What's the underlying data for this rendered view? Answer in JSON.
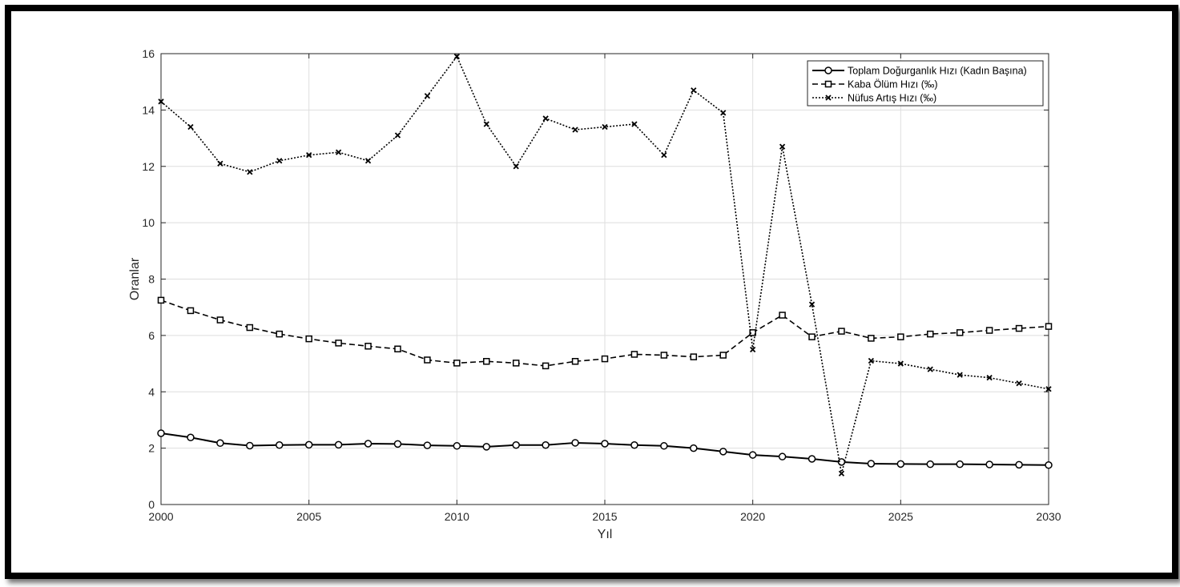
{
  "chart_data": {
    "type": "line",
    "title": "",
    "xlabel": "Yıl",
    "ylabel": "Oranlar",
    "xlim": [
      2000,
      2030
    ],
    "ylim": [
      0,
      16
    ],
    "xticks": [
      2000,
      2005,
      2010,
      2015,
      2020,
      2025,
      2030
    ],
    "yticks": [
      0,
      2,
      4,
      6,
      8,
      10,
      12,
      14,
      16
    ],
    "grid": true,
    "legend_position": "top-right",
    "x": [
      2000,
      2001,
      2002,
      2003,
      2004,
      2005,
      2006,
      2007,
      2008,
      2009,
      2010,
      2011,
      2012,
      2013,
      2014,
      2015,
      2016,
      2017,
      2018,
      2019,
      2020,
      2021,
      2022,
      2023,
      2024,
      2025,
      2026,
      2027,
      2028,
      2029,
      2030
    ],
    "series": [
      {
        "name": "Toplam Doğurganlık Hızı (Kadın Başına)",
        "style": "solid",
        "marker": "circle",
        "color": "#000000",
        "values": [
          2.53,
          2.38,
          2.18,
          2.09,
          2.11,
          2.12,
          2.12,
          2.16,
          2.15,
          2.1,
          2.08,
          2.05,
          2.11,
          2.11,
          2.19,
          2.16,
          2.11,
          2.08,
          2.0,
          1.88,
          1.76,
          1.7,
          1.62,
          1.51,
          1.45,
          1.44,
          1.43,
          1.43,
          1.42,
          1.41,
          1.4
        ]
      },
      {
        "name": "Kaba Ölüm Hızı (‰)",
        "style": "dashed",
        "marker": "square",
        "color": "#000000",
        "values": [
          7.25,
          6.88,
          6.55,
          6.28,
          6.05,
          5.88,
          5.73,
          5.62,
          5.52,
          5.13,
          5.02,
          5.08,
          5.02,
          4.92,
          5.08,
          5.17,
          5.33,
          5.3,
          5.24,
          5.3,
          6.1,
          6.72,
          5.95,
          6.15,
          5.9,
          5.95,
          6.05,
          6.1,
          6.18,
          6.25,
          6.32
        ]
      },
      {
        "name": "Nüfus Artış Hızı (‰)",
        "style": "dotted",
        "marker": "x",
        "color": "#000000",
        "values": [
          14.3,
          13.4,
          12.1,
          11.8,
          12.2,
          12.4,
          12.5,
          12.2,
          13.1,
          14.5,
          15.9,
          13.5,
          12.0,
          13.7,
          13.3,
          13.4,
          13.5,
          12.4,
          14.7,
          13.9,
          5.5,
          12.7,
          7.1,
          1.1,
          5.1,
          5.0,
          4.8,
          4.6,
          4.5,
          4.3,
          4.1
        ]
      }
    ]
  }
}
